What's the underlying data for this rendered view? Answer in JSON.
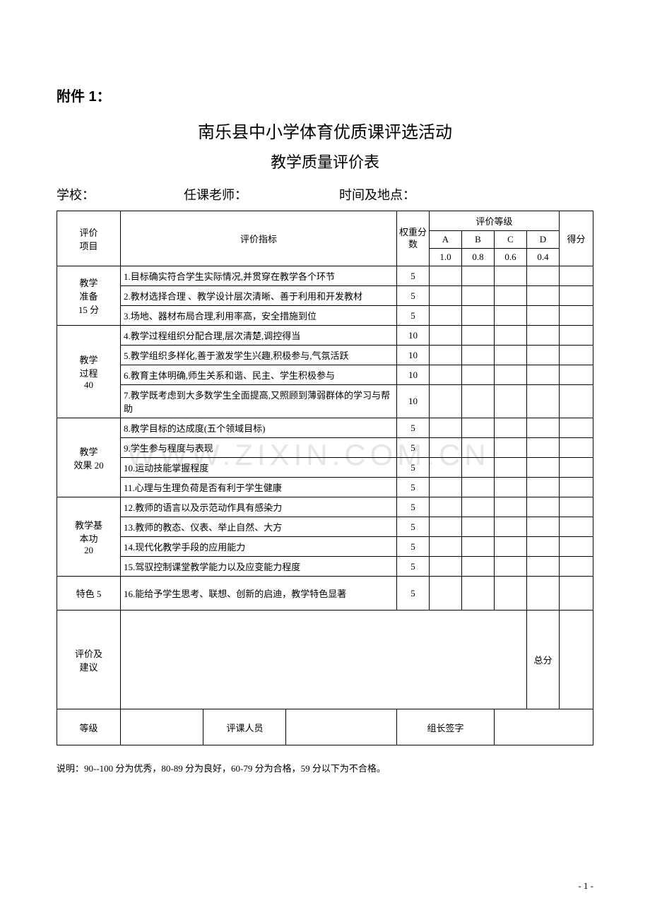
{
  "attachment": "附件 1：",
  "title_line1": "南乐县中小学体育优质课评选活动",
  "title_line2": "教学质量评价表",
  "header": {
    "school": "学校：",
    "teacher": "任课老师：",
    "time_place": "时间及地点："
  },
  "thead": {
    "category": "评价\n项目",
    "indicator": "评价指标",
    "weight": "权重分数",
    "grade_group": "评价等级",
    "grades": [
      "A",
      "B",
      "C",
      "D"
    ],
    "grade_values": [
      "1.0",
      "0.8",
      "0.6",
      "0.4"
    ],
    "score": "得分"
  },
  "sections": [
    {
      "name": "教学\n准备\n15 分",
      "rows": [
        {
          "text": "1.目标确实符合学生实际情况,并贯穿在教学各个环节",
          "weight": "5"
        },
        {
          "text": "2.教材选择合理 、教学设计层次清晰、善于利用和开发教材",
          "weight": "5"
        },
        {
          "text": "3.场地、器材布局合理,利用率高，安全措施到位",
          "weight": "5"
        }
      ]
    },
    {
      "name": "教学\n过程\n40",
      "rows": [
        {
          "text": "4.教学过程组织分配合理,层次清楚,调控得当",
          "weight": "10"
        },
        {
          "text": "5.教学组织多样化,善于激发学生兴趣,积极参与,气氛活跃",
          "weight": "10"
        },
        {
          "text": "6.教育主体明确,师生关系和谐、民主、学生积极参与",
          "weight": "10"
        },
        {
          "text": "7.教学既考虑到大多数学生全面提高,又照顾到薄弱群体的学习与帮助",
          "weight": "10"
        }
      ]
    },
    {
      "name": "教学\n效果 20",
      "rows": [
        {
          "text": "8.教学目标的达成度(五个领域目标)",
          "weight": "5"
        },
        {
          "text": "9.学生参与程度与表现",
          "weight": "5"
        },
        {
          "text": "10.运动技能掌握程度",
          "weight": "5"
        },
        {
          "text": "11.心理与生理负荷是否有利于学生健康",
          "weight": "5"
        }
      ]
    },
    {
      "name": "教学基\n本功\n20",
      "rows": [
        {
          "text": "12.教师的语言以及示范动作具有感染力",
          "weight": "5"
        },
        {
          "text": "13.教师的教态、仪表、举止自然、大方",
          "weight": "5"
        },
        {
          "text": "14.现代化教学手段的应用能力",
          "weight": "5"
        },
        {
          "text": "15.驾驭控制课堂教学能力以及应变能力程度",
          "weight": "5"
        }
      ]
    },
    {
      "name": "特色 5",
      "rows": [
        {
          "text": "16.能给予学生思考、联想、创新的启迪，教学特色显著",
          "weight": "5"
        }
      ]
    }
  ],
  "eval_row": {
    "label": "评价及\n建议",
    "total": "总分"
  },
  "footer_row": {
    "grade": "等级",
    "reviewer": "评课人员",
    "leader": "组长签字"
  },
  "note": "说明：90--100 分为优秀，80-89 分为良好，60-79 分为合格，59 分以下为不合格。",
  "pagenum": "- 1 -",
  "watermark": "WWW.ZIXIN.COM.CN"
}
